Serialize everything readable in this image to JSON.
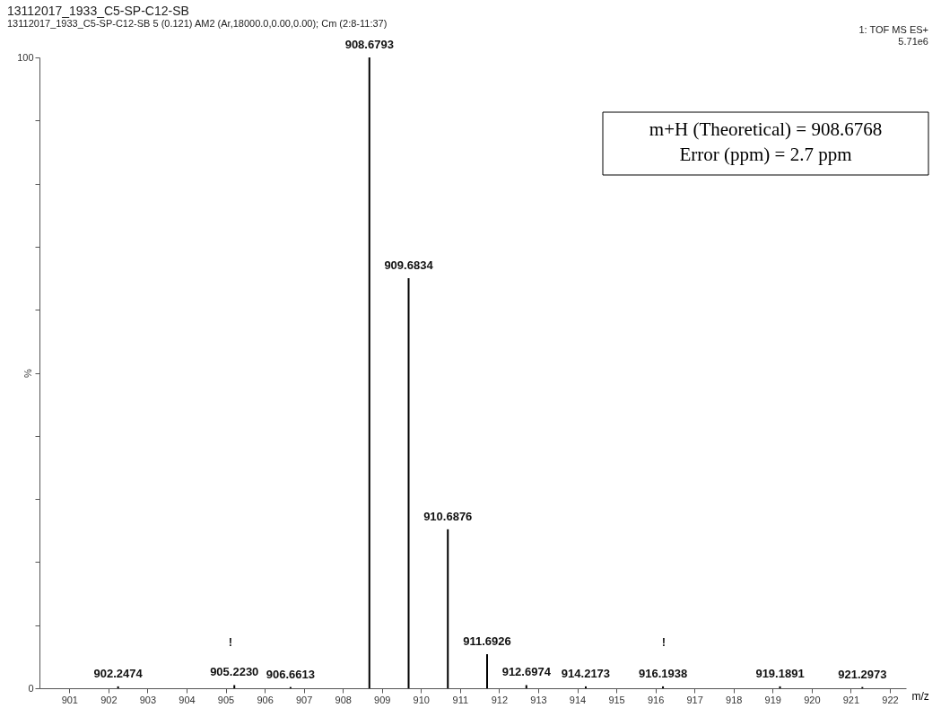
{
  "chart_data": {
    "type": "bar",
    "title": "13112017_1933_C5-SP-C12-SB",
    "subtitle": "13112017_1933_C5-SP-C12-SB 5 (0.121) AM2 (Ar,18000.0,0.00,0.00); Cm (2:8-11:37)",
    "xlabel": "m/z",
    "ylabel": "%",
    "x": [
      902.2474,
      905.223,
      906.6613,
      908.6793,
      909.6834,
      910.6876,
      911.6926,
      912.6974,
      914.2173,
      916.1938,
      919.1891,
      921.2973
    ],
    "values": [
      0.3,
      0.5,
      0.2,
      100,
      65,
      25.2,
      5.4,
      0.5,
      0.3,
      0.3,
      0.3,
      0.2
    ],
    "color": "#000000",
    "xlim": [
      900.35,
      922.3
    ],
    "xticks": [
      901,
      902,
      903,
      904,
      905,
      906,
      907,
      908,
      909,
      910,
      911,
      912,
      913,
      914,
      915,
      916,
      917,
      918,
      919,
      920,
      921,
      922
    ],
    "ylim": [
      0,
      100
    ],
    "yticks": [
      0,
      {
        "value": 10,
        "label": null
      },
      {
        "value": 20,
        "label": null
      },
      {
        "value": 30,
        "label": null
      },
      {
        "value": 40,
        "label": null
      },
      {
        "value": 50,
        "label": null
      },
      {
        "value": 60,
        "label": null
      },
      {
        "value": 70,
        "label": null
      },
      {
        "value": 80,
        "label": null
      },
      {
        "value": 90,
        "label": null
      },
      100
    ],
    "grid": false,
    "annotations": [
      "1: TOF MS ES+",
      "5.71e6",
      "!",
      "!",
      "m+H (Theoretical) = 908.6768",
      "Error (ppm) = 2.7 ppm",
      {
        "text": "902.2474",
        "x": 902.2474,
        "y": 0.3
      },
      {
        "text": "905.2230",
        "x": 905.223,
        "y": 0.5
      },
      {
        "text": "906.6613",
        "x": 906.6613,
        "y": 0.2
      },
      {
        "text": "908.6793",
        "x": 908.6793,
        "y": 100
      },
      {
        "text": "909.6834",
        "x": 909.6834,
        "y": 65
      },
      {
        "text": "910.6876",
        "x": 910.6876,
        "y": 25.2
      },
      {
        "text": "911.6926",
        "x": 911.6926,
        "y": 5.4
      },
      {
        "text": "912.6974",
        "x": 912.6974,
        "y": 0.5
      },
      {
        "text": "914.2173",
        "x": 914.2173,
        "y": 0.3
      },
      {
        "text": "916.1938",
        "x": 916.1938,
        "y": 0.3
      },
      {
        "text": "919.1891",
        "x": 919.1891,
        "y": 0.3
      },
      {
        "text": "921.2973",
        "x": 921.2973,
        "y": 0.2
      }
    ]
  }
}
